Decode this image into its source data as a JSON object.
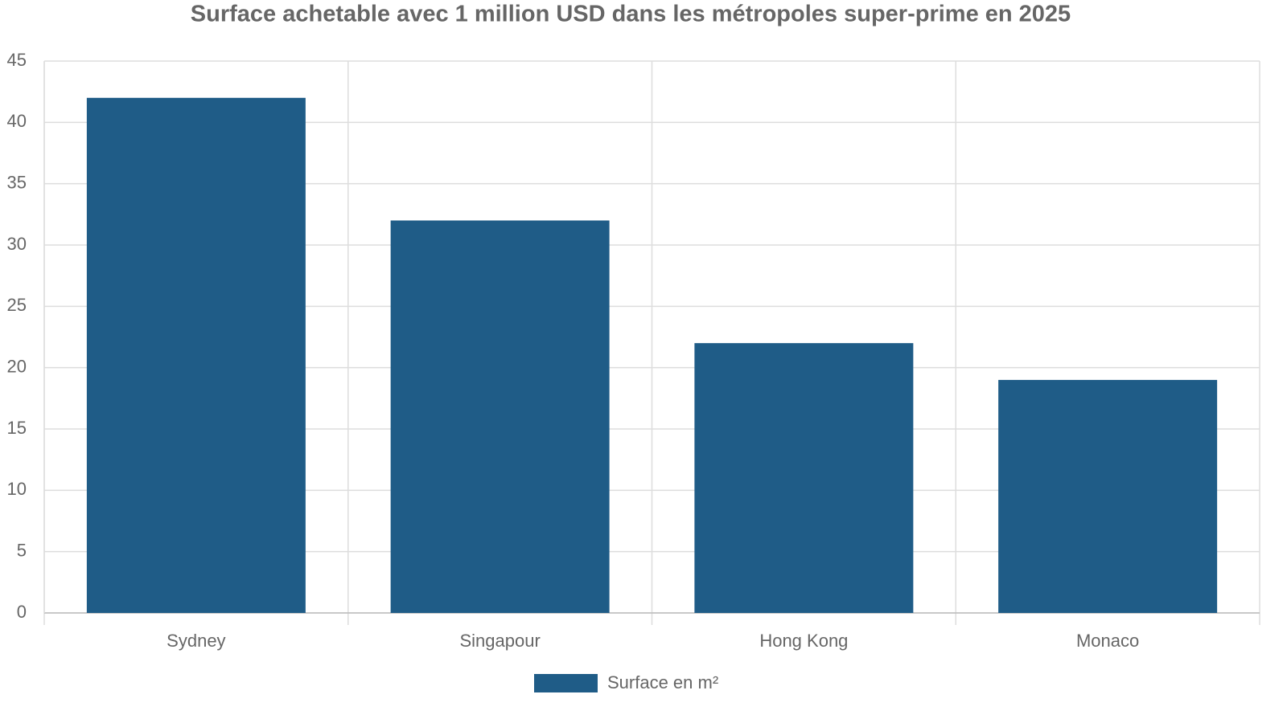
{
  "chart_data": {
    "type": "bar",
    "title": "Surface achetable avec 1 million USD dans les métropoles super-prime en 2025",
    "categories": [
      "Sydney",
      "Singapour",
      "Hong Kong",
      "Monaco"
    ],
    "series": [
      {
        "name": "Surface en m²",
        "color": "#1f5c87",
        "values": [
          42,
          32,
          22,
          19
        ]
      }
    ],
    "ylim": [
      0,
      45
    ],
    "yticks": [
      0,
      5,
      10,
      15,
      20,
      25,
      30,
      35,
      40,
      45
    ],
    "grid": true,
    "legend": "bottom"
  }
}
